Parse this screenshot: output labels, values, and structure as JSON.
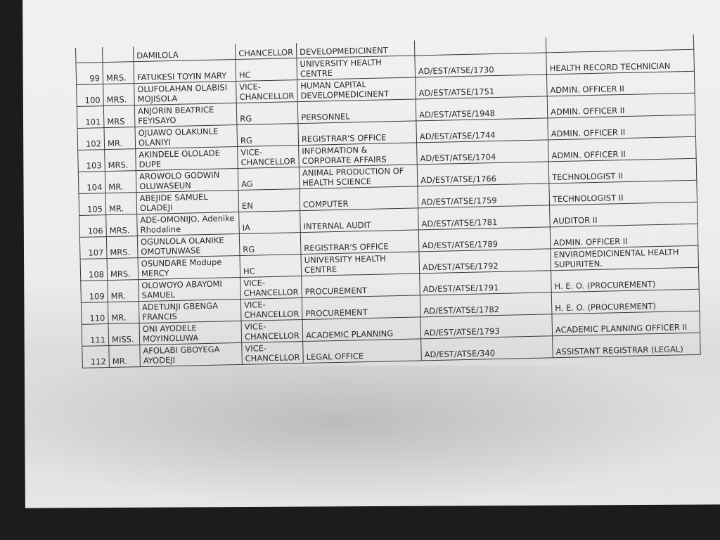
{
  "partial_row": {
    "name": "DAMILOLA",
    "unit": "CHANCELLOR",
    "department": "DEVELOPMEDICINENT"
  },
  "rows": [
    {
      "no": "99",
      "title": "MRS.",
      "name": "FATUKESI TOYIN MARY",
      "unit": "HC",
      "department": "UNIVERSITY HEALTH CENTRE",
      "file_no": "AD/EST/ATSE/1730",
      "rank": "HEALTH RECORD TECHNICIAN"
    },
    {
      "no": "100",
      "title": "MRS.",
      "name": "OLUFOLAHAN OLABISI MOJISOLA",
      "unit": "VICE-CHANCELLOR",
      "department": "HUMAN CAPITAL DEVELOPMEDICINENT",
      "file_no": "AD/EST/ATSE/1751",
      "rank": "ADMIN. OFFICER II"
    },
    {
      "no": "101",
      "title": "MRS",
      "name": "ANJORIN BEATRICE FEYISAYO",
      "unit": "RG",
      "department": "PERSONNEL",
      "file_no": "AD/EST/ATSE/1948",
      "rank": "ADMIN. OFFICER II"
    },
    {
      "no": "102",
      "title": "MR.",
      "name": "OJUAWO OLAKUNLE OLANIYI",
      "unit": "RG",
      "department": "REGISTRAR'S OFFICE",
      "file_no": "AD/EST/ATSE/1744",
      "rank": "ADMIN. OFFICER II"
    },
    {
      "no": "103",
      "title": "MRS.",
      "name": "AKINDELE OLOLADE DUPE",
      "unit": "VICE-CHANCELLOR",
      "department": "INFORMATION & CORPORATE AFFAIRS",
      "file_no": "AD/EST/ATSE/1704",
      "rank": "ADMIN. OFFICER II"
    },
    {
      "no": "104",
      "title": "MR.",
      "name": "AROWOLO GODWIN OLUWASEUN",
      "unit": "AG",
      "department": "ANIMAL PRODUCTION OF HEALTH SCIENCE",
      "file_no": "AD/EST/ATSE/1766",
      "rank": "TECHNOLOGIST II"
    },
    {
      "no": "105",
      "title": "MR.",
      "name": "ABEJIDE SAMUEL OLADEJI",
      "unit": "EN",
      "department": "COMPUTER",
      "file_no": "AD/EST/ATSE/1759",
      "rank": "TECHNOLOGIST II"
    },
    {
      "no": "106",
      "title": "MRS.",
      "name": "ADE-OMONIJO, Adenike Rhodaline",
      "unit": "IA",
      "department": "INTERNAL AUDIT",
      "file_no": "AD/EST/ATSE/1781",
      "rank": "AUDITOR II"
    },
    {
      "no": "107",
      "title": "MRS.",
      "name": "OGUNLOLA OLANIKE OMOTUNWASE",
      "unit": "RG",
      "department": "REGISTRAR'S OFFICE",
      "file_no": "AD/EST/ATSE/1789",
      "rank": "ADMIN. OFFICER II"
    },
    {
      "no": "108",
      "title": "MRS.",
      "name": "OSUNDARE Modupe MERCY",
      "unit": "HC",
      "department": "UNIVERSITY HEALTH CENTRE",
      "file_no": "AD/EST/ATSE/1792",
      "rank": "ENVIROMEDICINENTAL HEALTH SUPURITEN."
    },
    {
      "no": "109",
      "title": "MR.",
      "name": "OLOWOYO ABAYOMI SAMUEL",
      "unit": "VICE-CHANCELLOR",
      "department": "PROCUREMENT",
      "file_no": "AD/EST/ATSE/1791",
      "rank": "H. E. O. (PROCUREMENT)"
    },
    {
      "no": "110",
      "title": "MR.",
      "name": "ADETUNJI GBENGA FRANCIS",
      "unit": "VICE-CHANCELLOR",
      "department": "PROCUREMENT",
      "file_no": "AD/EST/ATSE/1782",
      "rank": "H. E. O. (PROCUREMENT)"
    },
    {
      "no": "111",
      "title": "MISS.",
      "name": "ONI AYODELE MOYINOLUWA",
      "unit": "VICE-CHANCELLOR",
      "department": "ACADEMIC PLANNING",
      "file_no": "AD/EST/ATSE/1793",
      "rank": "ACADEMIC PLANNING OFFICER II"
    },
    {
      "no": "112",
      "title": "MR.",
      "name": "AFOLABI GBOYEGA AYODEJI",
      "unit": "VICE-CHANCELLOR",
      "department": "LEGAL OFFICE",
      "file_no": "AD/EST/ATSE/340",
      "rank": "ASSISTANT REGISTRAR (LEGAL)"
    }
  ]
}
